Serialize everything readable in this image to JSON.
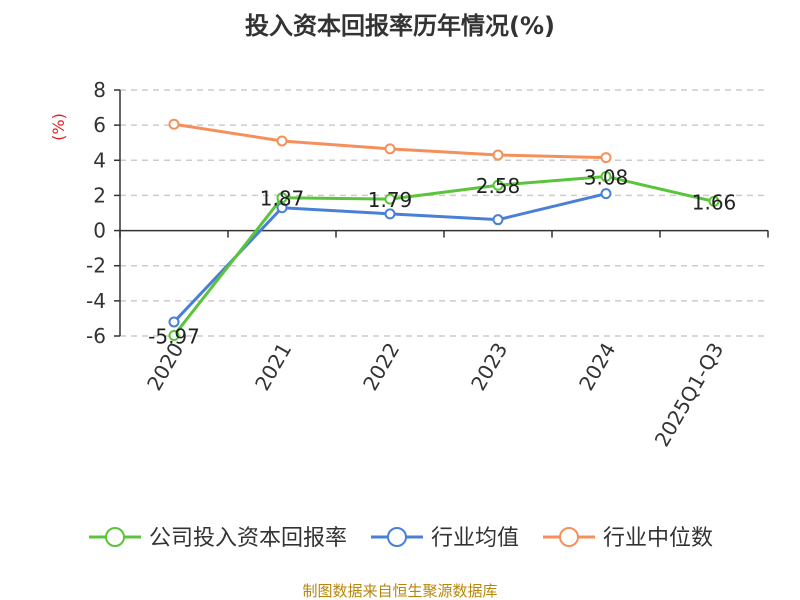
{
  "chart_data": {
    "type": "line",
    "title": "投入资本回报率历年情况(%)",
    "ylabel": "(%)",
    "xlabel": "",
    "categories": [
      "2020",
      "2021",
      "2022",
      "2023",
      "2024",
      "2025Q1-Q3"
    ],
    "ylim": [
      -6,
      8
    ],
    "yticks": [
      8,
      6,
      4,
      2,
      0,
      -2,
      -4,
      -6
    ],
    "grid": true,
    "legend_position": "bottom",
    "series": [
      {
        "name": "公司投入资本回报率",
        "color": "#5ac43a",
        "values": [
          -5.97,
          1.87,
          1.79,
          2.58,
          3.08,
          1.66
        ],
        "labels": [
          "-5.97",
          "1.87",
          "1.79",
          "2.58",
          "3.08",
          "1.66"
        ]
      },
      {
        "name": "行业均值",
        "color": "#4a7fd8",
        "values": [
          -5.2,
          1.3,
          0.95,
          0.62,
          2.1,
          null
        ]
      },
      {
        "name": "行业中位数",
        "color": "#f5905a",
        "values": [
          6.05,
          5.1,
          4.65,
          4.3,
          4.15,
          null
        ]
      }
    ]
  },
  "footer": {
    "source": "制图数据来自恒生聚源数据库"
  }
}
